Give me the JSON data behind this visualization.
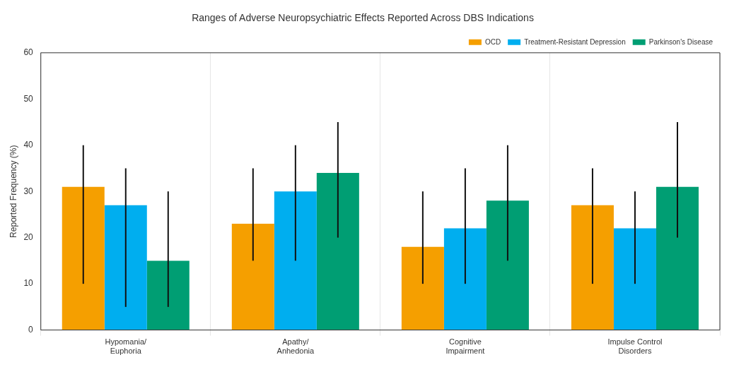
{
  "chart_data": {
    "type": "bar",
    "title": "Ranges of Adverse Neuropsychiatric Effects Reported Across DBS Indications",
    "ylabel": "Reported Frequency (%)",
    "categories": [
      "Hypomania/\nEuphoria",
      "Apathy/\nAnhedonia",
      "Cognitive\nImpairment",
      "Impulse Control\nDisorders"
    ],
    "series": [
      {
        "name": "OCD",
        "color": "#f59f00",
        "values": [
          31,
          23,
          18,
          27
        ],
        "errors": [
          [
            10,
            40
          ],
          [
            15,
            35
          ],
          [
            10,
            30
          ],
          [
            10,
            35
          ]
        ]
      },
      {
        "name": "Treatment-Resistant Depression",
        "color": "#00aeef",
        "values": [
          27,
          30,
          22,
          22
        ],
        "errors": [
          [
            5,
            35
          ],
          [
            15,
            40
          ],
          [
            10,
            35
          ],
          [
            10,
            30
          ]
        ]
      },
      {
        "name": "Parkinson's Disease",
        "color": "#009e73",
        "values": [
          15,
          34,
          28,
          31
        ],
        "errors": [
          [
            5,
            30
          ],
          [
            20,
            45
          ],
          [
            15,
            40
          ],
          [
            20,
            45
          ]
        ]
      }
    ],
    "ylim": [
      0,
      60
    ],
    "yticks": [
      0,
      10,
      20,
      30,
      40,
      50,
      60
    ],
    "grid": "x",
    "legend": "top right"
  }
}
